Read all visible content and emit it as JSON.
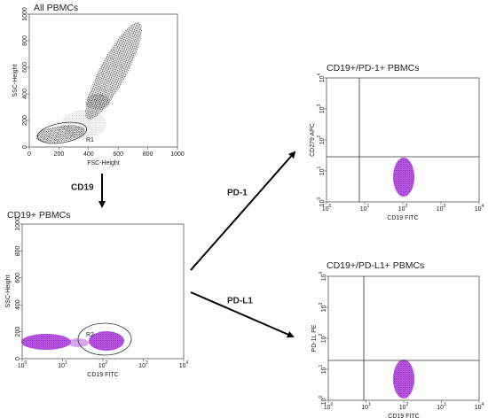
{
  "panels": [
    {
      "title": "All PBMCs",
      "y_label": "SSC-Height",
      "x_label": "FSC-Height",
      "yticks": [
        "0",
        "200",
        "400",
        "600",
        "800",
        "1000"
      ],
      "xticks": [
        "0",
        "200",
        "400",
        "600",
        "800",
        "1000"
      ],
      "gate": "R1"
    },
    {
      "title": "CD19+ PBMCs",
      "y_label": "SSC-Height",
      "x_label": "CD19 FITC",
      "yticks": [
        "0",
        "200",
        "400",
        "600",
        "800",
        "1000"
      ],
      "xticks": [
        {
          "base": "10",
          "sup": "0"
        },
        {
          "base": "10",
          "sup": "1"
        },
        {
          "base": "10",
          "sup": "2"
        },
        {
          "base": "10",
          "sup": "3"
        },
        {
          "base": "10",
          "sup": "4"
        }
      ],
      "gate": "R2"
    },
    {
      "title": "CD19+/PD-1+ PBMCs",
      "y_label": "CD279 APC",
      "x_label": "CD19 FITC",
      "yticks": [
        {
          "base": "10",
          "sup": "0"
        },
        {
          "base": "10",
          "sup": "1"
        },
        {
          "base": "10",
          "sup": "2"
        },
        {
          "base": "10",
          "sup": "3"
        },
        {
          "base": "10",
          "sup": "4"
        }
      ],
      "xticks": [
        {
          "base": "10",
          "sup": "0"
        },
        {
          "base": "10",
          "sup": "1"
        },
        {
          "base": "10",
          "sup": "2"
        },
        {
          "base": "10",
          "sup": "3"
        },
        {
          "base": "10",
          "sup": "4"
        }
      ]
    },
    {
      "title": "CD19+/PD-L1+ PBMCs",
      "y_label": "PD-1L PE",
      "x_label": "CD19 FITC",
      "yticks": [
        {
          "base": "10",
          "sup": "0"
        },
        {
          "base": "10",
          "sup": "1"
        },
        {
          "base": "10",
          "sup": "2"
        },
        {
          "base": "10",
          "sup": "3"
        },
        {
          "base": "10",
          "sup": "4"
        }
      ],
      "xticks": [
        {
          "base": "10",
          "sup": "0"
        },
        {
          "base": "10",
          "sup": "1"
        },
        {
          "base": "10",
          "sup": "2"
        },
        {
          "base": "10",
          "sup": "3"
        },
        {
          "base": "10",
          "sup": "4"
        }
      ]
    }
  ],
  "arrows": [
    {
      "label": "CD19"
    },
    {
      "label": "PD-1"
    },
    {
      "label": "PD-L1"
    }
  ]
}
